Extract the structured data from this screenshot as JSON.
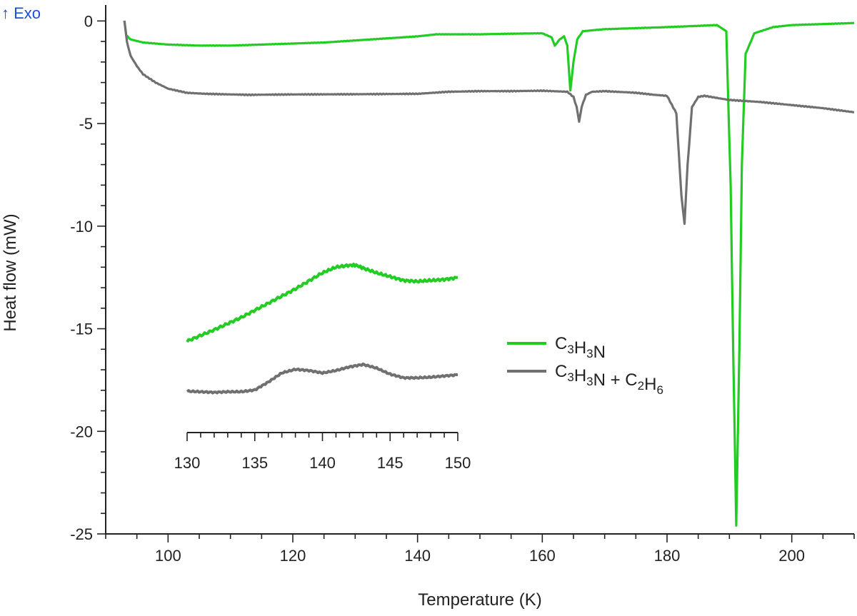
{
  "chart_data": {
    "type": "line",
    "exo_label": "↑ Exo",
    "xlabel": "Temperature (K)",
    "ylabel": "Heat flow (mW)",
    "xlim": [
      90,
      210
    ],
    "ylim": [
      -25,
      0.5
    ],
    "xticks": [
      100,
      120,
      140,
      160,
      180,
      200
    ],
    "xtick_labels": [
      "100",
      "120",
      "140",
      "160",
      "180",
      "200"
    ],
    "yticks": [
      0,
      -5,
      -10,
      -15,
      -20,
      -25
    ],
    "ytick_labels": [
      "0",
      "-5",
      "-10",
      "-15",
      "-20",
      "-25"
    ],
    "colors": {
      "green": "#22cc22",
      "gray": "#707070",
      "exo": "#1a4fd6",
      "axis": "#222222"
    },
    "legend": [
      {
        "name_parts": [
          [
            "C",
            ""
          ],
          [
            "3",
            "sub"
          ],
          [
            "H",
            ""
          ],
          [
            "3",
            "sub"
          ],
          [
            "N",
            ""
          ]
        ],
        "color": "#22cc22"
      },
      {
        "name_parts": [
          [
            "C",
            ""
          ],
          [
            "3",
            "sub"
          ],
          [
            "H",
            ""
          ],
          [
            "3",
            "sub"
          ],
          [
            "N + C",
            ""
          ],
          [
            "2",
            "sub"
          ],
          [
            "H",
            ""
          ],
          [
            "6",
            "sub"
          ]
        ],
        "color": "#707070"
      }
    ],
    "series": [
      {
        "name": "C3H3N",
        "color": "#22cc22",
        "x": [
          93,
          93.3,
          94,
          96,
          100,
          105,
          110,
          115,
          120,
          125,
          130,
          135,
          140,
          143,
          150,
          155,
          160,
          161.5,
          162,
          162.8,
          163.5,
          164,
          164.5,
          165,
          165.6,
          166.5,
          170,
          180,
          188,
          189.5,
          190.2,
          190.6,
          191.1,
          191.6,
          192,
          192.6,
          194,
          197,
          200,
          205,
          210
        ],
        "values": [
          0,
          -0.7,
          -0.9,
          -1.05,
          -1.15,
          -1.2,
          -1.2,
          -1.15,
          -1.1,
          -1.05,
          -0.95,
          -0.85,
          -0.75,
          -0.65,
          -0.65,
          -0.62,
          -0.6,
          -0.8,
          -1.2,
          -0.9,
          -0.75,
          -1.2,
          -3.4,
          -2.0,
          -0.9,
          -0.5,
          -0.4,
          -0.3,
          -0.2,
          -0.5,
          -8.0,
          -16,
          -24.6,
          -16,
          -7.0,
          -1.6,
          -0.6,
          -0.3,
          -0.2,
          -0.15,
          -0.1
        ]
      },
      {
        "name": "C3H3N + C2H6",
        "color": "#707070",
        "x": [
          93,
          93.4,
          94,
          95,
          96,
          98,
          100,
          103,
          106,
          110,
          113,
          120,
          130,
          140,
          145,
          150,
          155,
          160,
          164,
          165,
          165.5,
          165.9,
          166.3,
          167,
          168,
          170,
          175,
          178,
          180,
          181.5,
          182.3,
          182.8,
          183.3,
          184,
          185,
          186,
          190,
          195,
          200,
          205,
          210
        ],
        "values": [
          0,
          -1.0,
          -1.7,
          -2.2,
          -2.6,
          -3.0,
          -3.3,
          -3.5,
          -3.55,
          -3.58,
          -3.6,
          -3.58,
          -3.57,
          -3.55,
          -3.45,
          -3.42,
          -3.42,
          -3.4,
          -3.45,
          -3.7,
          -4.2,
          -4.9,
          -4.2,
          -3.6,
          -3.45,
          -3.42,
          -3.5,
          -3.6,
          -3.65,
          -4.5,
          -8.5,
          -9.9,
          -7.0,
          -4.2,
          -3.7,
          -3.65,
          -3.85,
          -3.95,
          -4.1,
          -4.25,
          -4.45
        ]
      }
    ],
    "inset": {
      "xlim": [
        130,
        150
      ],
      "xticks": [
        130,
        135,
        140,
        145,
        150
      ],
      "xtick_labels": [
        "130",
        "135",
        "140",
        "145",
        "150"
      ],
      "series": [
        {
          "name": "C3H3N",
          "color": "#22cc22",
          "x": [
            130,
            132,
            134,
            136,
            138,
            140,
            141,
            142,
            142.5,
            143,
            144,
            145,
            146,
            147,
            148,
            149,
            150
          ],
          "values": [
            0.0,
            0.12,
            0.25,
            0.4,
            0.55,
            0.72,
            0.78,
            0.8,
            0.8,
            0.77,
            0.72,
            0.68,
            0.64,
            0.63,
            0.64,
            0.65,
            0.67
          ]
        },
        {
          "name": "C3H3N + C2H6",
          "color": "#707070",
          "x": [
            130,
            131,
            132,
            133,
            134,
            135,
            136,
            137,
            138,
            139,
            140,
            141,
            142,
            143,
            144,
            145,
            146,
            147,
            148,
            149,
            150
          ],
          "values": [
            0.2,
            0.19,
            0.18,
            0.19,
            0.19,
            0.22,
            0.35,
            0.5,
            0.56,
            0.54,
            0.5,
            0.54,
            0.6,
            0.64,
            0.58,
            0.48,
            0.42,
            0.42,
            0.43,
            0.45,
            0.47
          ]
        }
      ]
    }
  }
}
